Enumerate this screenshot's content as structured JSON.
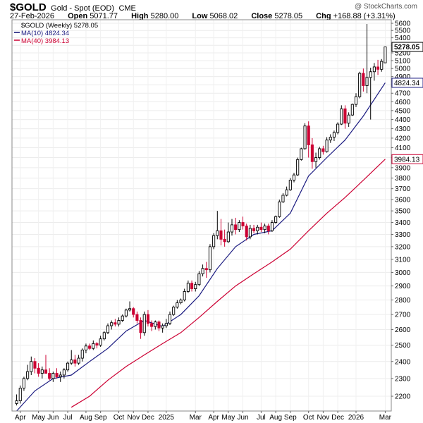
{
  "header": {
    "symbol": "$GOLD",
    "description": "Gold - Spot (EOD)",
    "exchange": "CME",
    "watermark": "@ StockCharts.com",
    "date": "27-Feb-2026",
    "quote": {
      "open_label": "Open",
      "open": "5071.77",
      "high_label": "High",
      "high": "5280.00",
      "low_label": "Low",
      "low": "5068.02",
      "close_label": "Close",
      "close": "5278.05",
      "chg_label": "Chg",
      "chg": "+168.88 (+3.31%)"
    }
  },
  "legend": {
    "main": "$GOLD (Weekly) 5278.05",
    "ma10": "MA(10) 4824.34",
    "ma40": "MA(40) 3984.13"
  },
  "colors": {
    "up": "#000000",
    "down": "#cc0033",
    "ma10": "#1a1a80",
    "ma40": "#cc0033",
    "last_bg": "#ffffff"
  },
  "chart_data": {
    "type": "candlestick",
    "timeframe": "weekly",
    "y_scale": "log",
    "ylim": [
      2120,
      5650
    ],
    "y_ticks": [
      2200,
      2300,
      2400,
      2500,
      2600,
      2700,
      2800,
      2900,
      3000,
      3100,
      3200,
      3300,
      3400,
      3500,
      3600,
      3700,
      3800,
      3900,
      4000,
      4100,
      4200,
      4300,
      4400,
      4500,
      4600,
      4700,
      4800,
      4900,
      5000,
      5100,
      5200,
      5300,
      5400,
      5500,
      5600
    ],
    "x_tick_labels": [
      "Apr",
      "May",
      "Jun",
      "Jul",
      "Aug",
      "Sep",
      "Oct",
      "Nov",
      "Dec",
      "2025",
      "Mar",
      "Apr",
      "May",
      "Jun",
      "Jul",
      "Aug",
      "Sep",
      "Oct",
      "Nov",
      "Dec",
      "2026",
      "Mar"
    ],
    "x_tick_index": [
      1,
      6,
      10,
      14,
      19,
      23,
      28,
      32,
      36,
      41,
      49,
      54,
      58,
      62,
      67,
      71,
      75,
      80,
      84,
      88,
      93,
      101
    ],
    "last_value_labels": [
      {
        "label": "5278.05",
        "value": 5278.05,
        "series": "price"
      },
      {
        "label": "4824.34",
        "value": 4824.34,
        "series": "ma10"
      },
      {
        "label": "3984.13",
        "value": 3984.13,
        "series": "ma40"
      }
    ],
    "candles": [
      {
        "o": 2160,
        "h": 2210,
        "l": 2150,
        "c": 2175
      },
      {
        "o": 2175,
        "h": 2260,
        "l": 2160,
        "c": 2245
      },
      {
        "o": 2245,
        "h": 2310,
        "l": 2230,
        "c": 2300
      },
      {
        "o": 2300,
        "h": 2380,
        "l": 2290,
        "c": 2340
      },
      {
        "o": 2340,
        "h": 2430,
        "l": 2320,
        "c": 2400
      },
      {
        "o": 2400,
        "h": 2420,
        "l": 2330,
        "c": 2360
      },
      {
        "o": 2360,
        "h": 2390,
        "l": 2310,
        "c": 2330
      },
      {
        "o": 2330,
        "h": 2370,
        "l": 2300,
        "c": 2350
      },
      {
        "o": 2350,
        "h": 2440,
        "l": 2330,
        "c": 2330
      },
      {
        "o": 2330,
        "h": 2360,
        "l": 2290,
        "c": 2300
      },
      {
        "o": 2300,
        "h": 2340,
        "l": 2280,
        "c": 2330
      },
      {
        "o": 2330,
        "h": 2360,
        "l": 2300,
        "c": 2310
      },
      {
        "o": 2310,
        "h": 2340,
        "l": 2280,
        "c": 2320
      },
      {
        "o": 2320,
        "h": 2360,
        "l": 2300,
        "c": 2350
      },
      {
        "o": 2350,
        "h": 2400,
        "l": 2340,
        "c": 2390
      },
      {
        "o": 2390,
        "h": 2470,
        "l": 2380,
        "c": 2410
      },
      {
        "o": 2410,
        "h": 2440,
        "l": 2370,
        "c": 2390
      },
      {
        "o": 2390,
        "h": 2440,
        "l": 2380,
        "c": 2420
      },
      {
        "o": 2420,
        "h": 2480,
        "l": 2400,
        "c": 2470
      },
      {
        "o": 2470,
        "h": 2510,
        "l": 2450,
        "c": 2495
      },
      {
        "o": 2495,
        "h": 2510,
        "l": 2470,
        "c": 2480
      },
      {
        "o": 2480,
        "h": 2530,
        "l": 2470,
        "c": 2510
      },
      {
        "o": 2510,
        "h": 2520,
        "l": 2480,
        "c": 2500
      },
      {
        "o": 2500,
        "h": 2560,
        "l": 2490,
        "c": 2540
      },
      {
        "o": 2540,
        "h": 2590,
        "l": 2530,
        "c": 2580
      },
      {
        "o": 2580,
        "h": 2640,
        "l": 2570,
        "c": 2625
      },
      {
        "o": 2625,
        "h": 2660,
        "l": 2600,
        "c": 2645
      },
      {
        "o": 2645,
        "h": 2670,
        "l": 2620,
        "c": 2635
      },
      {
        "o": 2635,
        "h": 2680,
        "l": 2620,
        "c": 2660
      },
      {
        "o": 2660,
        "h": 2700,
        "l": 2650,
        "c": 2690
      },
      {
        "o": 2690,
        "h": 2740,
        "l": 2680,
        "c": 2730
      },
      {
        "o": 2730,
        "h": 2790,
        "l": 2720,
        "c": 2740
      },
      {
        "o": 2740,
        "h": 2750,
        "l": 2680,
        "c": 2700
      },
      {
        "o": 2700,
        "h": 2720,
        "l": 2640,
        "c": 2660
      },
      {
        "o": 2660,
        "h": 2680,
        "l": 2540,
        "c": 2580
      },
      {
        "o": 2580,
        "h": 2720,
        "l": 2560,
        "c": 2700
      },
      {
        "o": 2700,
        "h": 2730,
        "l": 2620,
        "c": 2640
      },
      {
        "o": 2640,
        "h": 2660,
        "l": 2590,
        "c": 2620
      },
      {
        "o": 2620,
        "h": 2660,
        "l": 2600,
        "c": 2650
      },
      {
        "o": 2650,
        "h": 2660,
        "l": 2590,
        "c": 2610
      },
      {
        "o": 2610,
        "h": 2640,
        "l": 2580,
        "c": 2625
      },
      {
        "o": 2625,
        "h": 2670,
        "l": 2610,
        "c": 2640
      },
      {
        "o": 2640,
        "h": 2720,
        "l": 2630,
        "c": 2700
      },
      {
        "o": 2700,
        "h": 2760,
        "l": 2690,
        "c": 2750
      },
      {
        "o": 2750,
        "h": 2800,
        "l": 2740,
        "c": 2780
      },
      {
        "o": 2780,
        "h": 2810,
        "l": 2770,
        "c": 2800
      },
      {
        "o": 2800,
        "h": 2880,
        "l": 2790,
        "c": 2860
      },
      {
        "o": 2860,
        "h": 2940,
        "l": 2850,
        "c": 2920
      },
      {
        "o": 2920,
        "h": 2940,
        "l": 2860,
        "c": 2880
      },
      {
        "o": 2880,
        "h": 2930,
        "l": 2860,
        "c": 2910
      },
      {
        "o": 2910,
        "h": 3010,
        "l": 2900,
        "c": 2990
      },
      {
        "o": 2990,
        "h": 3060,
        "l": 2970,
        "c": 3030
      },
      {
        "o": 3030,
        "h": 3080,
        "l": 2960,
        "c": 3020
      },
      {
        "o": 3020,
        "h": 3220,
        "l": 3000,
        "c": 3200
      },
      {
        "o": 3200,
        "h": 3310,
        "l": 3180,
        "c": 3290
      },
      {
        "o": 3290,
        "h": 3500,
        "l": 3260,
        "c": 3330
      },
      {
        "o": 3330,
        "h": 3430,
        "l": 3210,
        "c": 3260
      },
      {
        "o": 3260,
        "h": 3340,
        "l": 3200,
        "c": 3240
      },
      {
        "o": 3240,
        "h": 3400,
        "l": 3230,
        "c": 3320
      },
      {
        "o": 3320,
        "h": 3430,
        "l": 3290,
        "c": 3380
      },
      {
        "o": 3380,
        "h": 3440,
        "l": 3300,
        "c": 3340
      },
      {
        "o": 3340,
        "h": 3420,
        "l": 3320,
        "c": 3400
      },
      {
        "o": 3400,
        "h": 3450,
        "l": 3340,
        "c": 3370
      },
      {
        "o": 3370,
        "h": 3390,
        "l": 3250,
        "c": 3280
      },
      {
        "o": 3280,
        "h": 3380,
        "l": 3260,
        "c": 3350
      },
      {
        "o": 3350,
        "h": 3380,
        "l": 3310,
        "c": 3330
      },
      {
        "o": 3330,
        "h": 3380,
        "l": 3300,
        "c": 3360
      },
      {
        "o": 3360,
        "h": 3400,
        "l": 3320,
        "c": 3340
      },
      {
        "o": 3340,
        "h": 3390,
        "l": 3310,
        "c": 3370
      },
      {
        "o": 3370,
        "h": 3390,
        "l": 3300,
        "c": 3330
      },
      {
        "o": 3330,
        "h": 3420,
        "l": 3320,
        "c": 3400
      },
      {
        "o": 3400,
        "h": 3460,
        "l": 3390,
        "c": 3450
      },
      {
        "o": 3450,
        "h": 3600,
        "l": 3440,
        "c": 3580
      },
      {
        "o": 3580,
        "h": 3660,
        "l": 3570,
        "c": 3640
      },
      {
        "o": 3640,
        "h": 3720,
        "l": 3630,
        "c": 3690
      },
      {
        "o": 3690,
        "h": 3800,
        "l": 3680,
        "c": 3780
      },
      {
        "o": 3780,
        "h": 3850,
        "l": 3760,
        "c": 3830
      },
      {
        "o": 3830,
        "h": 4000,
        "l": 3820,
        "c": 3980
      },
      {
        "o": 3980,
        "h": 4100,
        "l": 3970,
        "c": 4090
      },
      {
        "o": 4090,
        "h": 4360,
        "l": 4080,
        "c": 4330
      },
      {
        "o": 4330,
        "h": 4380,
        "l": 4000,
        "c": 4130
      },
      {
        "o": 4130,
        "h": 4200,
        "l": 3890,
        "c": 3960
      },
      {
        "o": 3960,
        "h": 4050,
        "l": 3900,
        "c": 4000
      },
      {
        "o": 4000,
        "h": 4110,
        "l": 3980,
        "c": 4090
      },
      {
        "o": 4090,
        "h": 4120,
        "l": 4030,
        "c": 4060
      },
      {
        "o": 4060,
        "h": 4210,
        "l": 4050,
        "c": 4180
      },
      {
        "o": 4180,
        "h": 4240,
        "l": 4150,
        "c": 4210
      },
      {
        "o": 4210,
        "h": 4280,
        "l": 4170,
        "c": 4260
      },
      {
        "o": 4260,
        "h": 4370,
        "l": 4240,
        "c": 4350
      },
      {
        "o": 4350,
        "h": 4560,
        "l": 4340,
        "c": 4520
      },
      {
        "o": 4520,
        "h": 4560,
        "l": 4300,
        "c": 4360
      },
      {
        "o": 4360,
        "h": 4480,
        "l": 4320,
        "c": 4450
      },
      {
        "o": 4450,
        "h": 4580,
        "l": 4440,
        "c": 4570
      },
      {
        "o": 4570,
        "h": 4700,
        "l": 4540,
        "c": 4660
      },
      {
        "o": 4660,
        "h": 4960,
        "l": 4640,
        "c": 4940
      },
      {
        "o": 4940,
        "h": 5000,
        "l": 4720,
        "c": 4790
      },
      {
        "o": 4790,
        "h": 5590,
        "l": 4700,
        "c": 4890
      },
      {
        "o": 4890,
        "h": 5010,
        "l": 4400,
        "c": 4960
      },
      {
        "o": 4960,
        "h": 5070,
        "l": 4850,
        "c": 5020
      },
      {
        "o": 5020,
        "h": 5110,
        "l": 4920,
        "c": 4990
      },
      {
        "o": 4990,
        "h": 5120,
        "l": 4960,
        "c": 5090
      },
      {
        "o": 5071.77,
        "h": 5280,
        "l": 5068.02,
        "c": 5278.05
      }
    ],
    "ma10": [
      [
        0,
        2120
      ],
      [
        5,
        2230
      ],
      [
        10,
        2300
      ],
      [
        15,
        2320
      ],
      [
        20,
        2400
      ],
      [
        25,
        2480
      ],
      [
        30,
        2590
      ],
      [
        35,
        2660
      ],
      [
        40,
        2620
      ],
      [
        45,
        2700
      ],
      [
        50,
        2830
      ],
      [
        55,
        3030
      ],
      [
        60,
        3200
      ],
      [
        65,
        3300
      ],
      [
        70,
        3330
      ],
      [
        75,
        3480
      ],
      [
        80,
        3820
      ],
      [
        85,
        4000
      ],
      [
        90,
        4180
      ],
      [
        95,
        4440
      ],
      [
        101,
        4824.34
      ]
    ],
    "ma40": [
      [
        15,
        2140
      ],
      [
        20,
        2200
      ],
      [
        25,
        2290
      ],
      [
        30,
        2370
      ],
      [
        35,
        2440
      ],
      [
        40,
        2510
      ],
      [
        45,
        2580
      ],
      [
        50,
        2680
      ],
      [
        55,
        2790
      ],
      [
        60,
        2900
      ],
      [
        65,
        2990
      ],
      [
        70,
        3080
      ],
      [
        75,
        3180
      ],
      [
        80,
        3330
      ],
      [
        85,
        3480
      ],
      [
        90,
        3620
      ],
      [
        95,
        3780
      ],
      [
        101,
        3984.13
      ]
    ]
  }
}
